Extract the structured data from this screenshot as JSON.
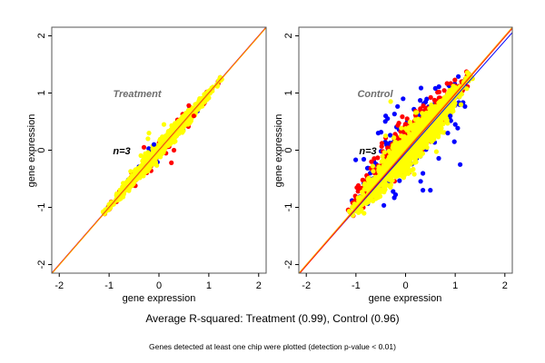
{
  "figure": {
    "main_caption": "Average R-squared: Treatment (0.99), Control (0.96)",
    "sub_caption": "Genes detected at least one chip were plotted (detection p-value < 0.01)"
  },
  "chart_data": [
    {
      "type": "scatter",
      "panel": "Treatment",
      "title": "Treatment",
      "annotation": "n=3",
      "xlabel": "gene expression",
      "ylabel": "gene expression",
      "xlim": [
        -2.15,
        2.15
      ],
      "ylim": [
        -2.15,
        2.15
      ],
      "xticks": [
        -2,
        -1,
        0,
        1,
        2
      ],
      "yticks": [
        -2,
        -1,
        0,
        1,
        2
      ],
      "grid": false,
      "colors": {
        "blue": "#0000ff",
        "red": "#ff0000",
        "yellow": "#ffff00",
        "title": "#6e6e6e"
      },
      "reference_lines": [
        {
          "color": "#0000ff",
          "slope": 1.0,
          "intercept": 0.0
        },
        {
          "color": "#ff0000",
          "slope": 1.0,
          "intercept": 0.0
        },
        {
          "color": "#ffa500",
          "slope": 1.0,
          "intercept": -0.01
        }
      ],
      "point_cloud": {
        "x_range": [
          -1.1,
          1.25
        ],
        "center_spread": 0.07,
        "layers": [
          {
            "name": "blue",
            "color": "#0000ff",
            "spread": 0.09,
            "count": 40
          },
          {
            "name": "red",
            "color": "#ff0000",
            "spread": 0.085,
            "count": 180
          },
          {
            "name": "yellow",
            "color": "#ffff00",
            "spread": 0.07,
            "count": 900
          }
        ],
        "outliers": [
          {
            "x": -0.3,
            "y": 0.05,
            "color": "#ff0000"
          },
          {
            "x": -0.22,
            "y": 0.2,
            "color": "#ffff00"
          },
          {
            "x": -0.2,
            "y": 0.3,
            "color": "#ffff00"
          },
          {
            "x": -0.1,
            "y": 0.1,
            "color": "#0000ff"
          },
          {
            "x": 0.25,
            "y": -0.22,
            "color": "#ff0000"
          },
          {
            "x": 0.3,
            "y": 0.0,
            "color": "#ff0000"
          },
          {
            "x": 0.1,
            "y": 0.45,
            "color": "#ffff00"
          },
          {
            "x": 0.6,
            "y": 0.78,
            "color": "#ff0000"
          },
          {
            "x": 0.7,
            "y": 0.6,
            "color": "#ff0000"
          }
        ]
      }
    },
    {
      "type": "scatter",
      "panel": "Control",
      "title": "Control",
      "annotation": "n=3",
      "xlabel": "gene expression",
      "ylabel": "gene expression",
      "xlim": [
        -2.15,
        2.15
      ],
      "ylim": [
        -2.15,
        2.15
      ],
      "xticks": [
        -2,
        -1,
        0,
        1,
        2
      ],
      "yticks": [
        -2,
        -1,
        0,
        1,
        2
      ],
      "grid": false,
      "colors": {
        "blue": "#0000ff",
        "red": "#ff0000",
        "yellow": "#ffff00",
        "title": "#6e6e6e"
      },
      "reference_lines": [
        {
          "color": "#0000ff",
          "slope": 0.98,
          "intercept": -0.05
        },
        {
          "color": "#ff0000",
          "slope": 1.0,
          "intercept": -0.02
        },
        {
          "color": "#ffa500",
          "slope": 1.0,
          "intercept": 0.0
        }
      ],
      "point_cloud": {
        "x_range": [
          -1.1,
          1.3
        ],
        "center_spread": 0.15,
        "layers": [
          {
            "name": "blue",
            "color": "#0000ff",
            "spread": 0.35,
            "count": 260,
            "offset": -0.08
          },
          {
            "name": "red",
            "color": "#ff0000",
            "spread": 0.22,
            "count": 500,
            "offset": -0.1
          },
          {
            "name": "yellow",
            "color": "#ffff00",
            "spread": 0.17,
            "count": 1400,
            "offset": 0.05
          }
        ],
        "outliers": [
          {
            "x": 1.0,
            "y": 0.45,
            "color": "#0000ff"
          },
          {
            "x": 1.1,
            "y": -0.25,
            "color": "#0000ff"
          },
          {
            "x": 0.5,
            "y": -0.7,
            "color": "#0000ff"
          },
          {
            "x": 0.35,
            "y": -0.7,
            "color": "#0000ff"
          },
          {
            "x": -0.05,
            "y": 0.9,
            "color": "#0000ff"
          },
          {
            "x": -0.4,
            "y": 0.6,
            "color": "#0000ff"
          },
          {
            "x": -0.3,
            "y": 0.85,
            "color": "#ffff00"
          },
          {
            "x": -0.55,
            "y": 0.3,
            "color": "#0000ff"
          },
          {
            "x": -0.4,
            "y": 0.25,
            "color": "#ffff00"
          },
          {
            "x": 0.6,
            "y": 1.08,
            "color": "#0000ff"
          },
          {
            "x": 0.85,
            "y": 0.3,
            "color": "#0000ff"
          },
          {
            "x": 0.9,
            "y": 0.6,
            "color": "#0000ff"
          }
        ]
      }
    }
  ]
}
